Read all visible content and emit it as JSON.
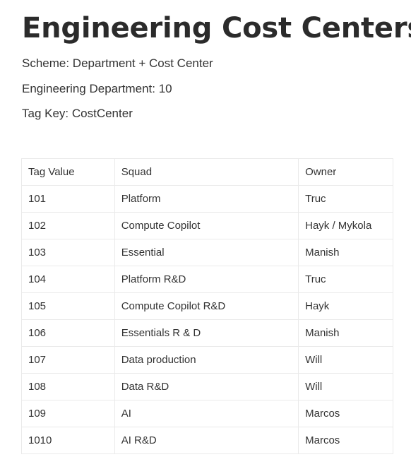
{
  "page": {
    "title": "Engineering Cost Centers",
    "scheme": "Scheme: Department + Cost Center",
    "department": "Engineering Department: 10",
    "tag_key": "Tag Key: CostCenter"
  },
  "table": {
    "headers": [
      "Tag Value",
      "Squad",
      "Owner"
    ],
    "rows": [
      [
        "101",
        "Platform",
        "Truc"
      ],
      [
        "102",
        "Compute Copilot",
        "Hayk / Mykola"
      ],
      [
        "103",
        "Essential",
        "Manish"
      ],
      [
        "104",
        "Platform R&D",
        "Truc"
      ],
      [
        "105",
        "Compute Copilot R&D",
        "Hayk"
      ],
      [
        "106",
        "Essentials R & D",
        "Manish"
      ],
      [
        "107",
        "Data production",
        "Will"
      ],
      [
        "108",
        "Data R&D",
        "Will"
      ],
      [
        "109",
        "AI",
        "Marcos"
      ],
      [
        "1010",
        "AI R&D",
        "Marcos"
      ]
    ]
  }
}
